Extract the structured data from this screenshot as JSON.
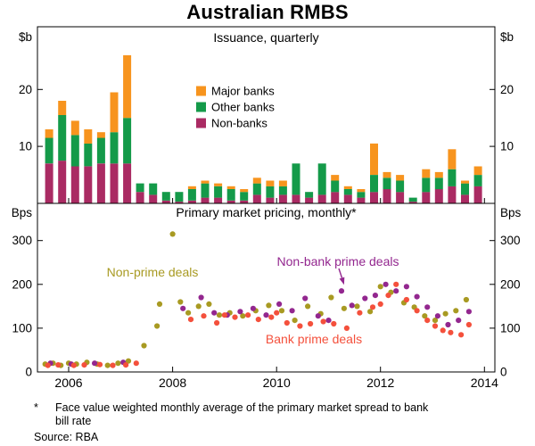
{
  "title": "Australian RMBS",
  "footnote": {
    "marker": "*",
    "text": "Face value weighted monthly average of the primary market spread to bank bill rate"
  },
  "source": "Source: RBA",
  "x_axis": {
    "min": 2005.4,
    "max": 2014.2,
    "ticks": [
      2006,
      2008,
      2010,
      2012,
      2014
    ]
  },
  "chart_data": [
    {
      "type": "bar",
      "panel": "top",
      "title": "Issuance, quarterly",
      "unit": "$b",
      "ylim": [
        0,
        31
      ],
      "yticks": [
        10,
        20
      ],
      "legend_order": [
        "Major banks",
        "Other banks",
        "Non-banks"
      ],
      "x": [
        2005.5,
        2005.75,
        2006,
        2006.25,
        2006.5,
        2006.75,
        2007,
        2007.25,
        2007.5,
        2007.75,
        2008,
        2008.25,
        2008.5,
        2008.75,
        2009,
        2009.25,
        2009.5,
        2009.75,
        2010,
        2010.25,
        2010.5,
        2010.75,
        2011,
        2011.25,
        2011.5,
        2011.75,
        2012,
        2012.25,
        2012.5,
        2012.75,
        2013,
        2013.25,
        2013.5,
        2013.75
      ],
      "series": [
        {
          "name": "Non-banks",
          "color": "#aa2b63",
          "values": [
            7,
            7.5,
            6.5,
            6.5,
            7,
            7,
            7,
            2,
            1.5,
            0.5,
            0.3,
            0.5,
            1,
            1,
            0.5,
            0.5,
            1.5,
            1,
            1.5,
            1.5,
            1,
            1.5,
            2,
            1.5,
            1,
            2,
            2.5,
            2,
            0.3,
            2,
            2.5,
            3,
            1.5,
            3
          ]
        },
        {
          "name": "Other banks",
          "color": "#149a49",
          "values": [
            4.5,
            8,
            5.5,
            4,
            4.5,
            5.5,
            8,
            1.5,
            2,
            1.5,
            1.7,
            2,
            2.5,
            2,
            2,
            1.5,
            2,
            2,
            1.5,
            5.5,
            1,
            5.5,
            2,
            1,
            1,
            3,
            2,
            2,
            0.7,
            2.5,
            2,
            3,
            2,
            2
          ]
        },
        {
          "name": "Major banks",
          "color": "#f7941e",
          "values": [
            1.5,
            2.5,
            2.5,
            2.5,
            1,
            7,
            11,
            0,
            0,
            0,
            0,
            0.5,
            0.5,
            0.5,
            0.5,
            0.5,
            1,
            1,
            1,
            0,
            0,
            0,
            1,
            0.5,
            0.5,
            5.5,
            1,
            1,
            0,
            1.5,
            1,
            3.5,
            0.5,
            1.5
          ]
        }
      ]
    },
    {
      "type": "scatter",
      "panel": "bottom",
      "title": "Primary market pricing, monthly*",
      "unit": "Bps",
      "ylim": [
        0,
        385
      ],
      "yticks": [
        0,
        100,
        200,
        300
      ],
      "series": [
        {
          "name": "Non-prime deals",
          "color": "#a89a22",
          "points": [
            [
              2005.55,
              18
            ],
            [
              2005.7,
              20
            ],
            [
              2005.85,
              15
            ],
            [
              2006.0,
              20
            ],
            [
              2006.15,
              18
            ],
            [
              2006.35,
              22
            ],
            [
              2006.55,
              18
            ],
            [
              2006.75,
              15
            ],
            [
              2006.95,
              20
            ],
            [
              2007.15,
              25
            ],
            [
              2007.45,
              60
            ],
            [
              2007.7,
              105
            ],
            [
              2007.75,
              155
            ],
            [
              2008.0,
              315
            ],
            [
              2008.15,
              160
            ],
            [
              2008.3,
              135
            ],
            [
              2008.5,
              150
            ],
            [
              2008.7,
              155
            ],
            [
              2008.9,
              130
            ],
            [
              2009.1,
              135
            ],
            [
              2009.35,
              128
            ],
            [
              2009.6,
              140
            ],
            [
              2009.85,
              152
            ],
            [
              2010.1,
              140
            ],
            [
              2010.35,
              118
            ],
            [
              2010.6,
              150
            ],
            [
              2010.85,
              133
            ],
            [
              2011.05,
              170
            ],
            [
              2011.3,
              145
            ],
            [
              2011.55,
              150
            ],
            [
              2011.8,
              138
            ],
            [
              2012.0,
              195
            ],
            [
              2012.2,
              182
            ],
            [
              2012.45,
              158
            ],
            [
              2012.65,
              148
            ],
            [
              2012.85,
              128
            ],
            [
              2013.05,
              118
            ],
            [
              2013.25,
              133
            ],
            [
              2013.45,
              140
            ],
            [
              2013.65,
              165
            ]
          ]
        },
        {
          "name": "Non-bank prime deals",
          "color": "#93278f",
          "points": [
            [
              2005.65,
              20
            ],
            [
              2006.05,
              18
            ],
            [
              2006.5,
              20
            ],
            [
              2007.05,
              22
            ],
            [
              2008.2,
              145
            ],
            [
              2008.55,
              170
            ],
            [
              2008.8,
              135
            ],
            [
              2009.05,
              130
            ],
            [
              2009.3,
              138
            ],
            [
              2009.55,
              145
            ],
            [
              2009.8,
              130
            ],
            [
              2010.05,
              155
            ],
            [
              2010.3,
              140
            ],
            [
              2010.55,
              168
            ],
            [
              2010.8,
              128
            ],
            [
              2011.0,
              118
            ],
            [
              2011.25,
              185
            ],
            [
              2011.45,
              152
            ],
            [
              2011.7,
              168
            ],
            [
              2011.9,
              175
            ],
            [
              2012.1,
              200
            ],
            [
              2012.3,
              185
            ],
            [
              2012.5,
              195
            ],
            [
              2012.7,
              172
            ],
            [
              2012.9,
              148
            ],
            [
              2013.1,
              128
            ],
            [
              2013.3,
              108
            ],
            [
              2013.5,
              118
            ],
            [
              2013.7,
              138
            ]
          ]
        },
        {
          "name": "Bank prime deals",
          "color": "#f4503c",
          "points": [
            [
              2005.6,
              15
            ],
            [
              2005.8,
              16
            ],
            [
              2006.1,
              15
            ],
            [
              2006.3,
              16
            ],
            [
              2006.6,
              17
            ],
            [
              2006.85,
              15
            ],
            [
              2007.1,
              16
            ],
            [
              2007.3,
              20
            ],
            [
              2008.35,
              120
            ],
            [
              2008.6,
              128
            ],
            [
              2008.85,
              112
            ],
            [
              2009.0,
              130
            ],
            [
              2009.2,
              125
            ],
            [
              2009.45,
              130
            ],
            [
              2009.65,
              120
            ],
            [
              2009.9,
              125
            ],
            [
              2010.0,
              135
            ],
            [
              2010.2,
              112
            ],
            [
              2010.45,
              105
            ],
            [
              2010.65,
              110
            ],
            [
              2010.9,
              115
            ],
            [
              2011.1,
              110
            ],
            [
              2011.35,
              100
            ],
            [
              2011.6,
              135
            ],
            [
              2011.85,
              148
            ],
            [
              2012.0,
              155
            ],
            [
              2012.15,
              175
            ],
            [
              2012.3,
              200
            ],
            [
              2012.5,
              165
            ],
            [
              2012.7,
              140
            ],
            [
              2012.9,
              118
            ],
            [
              2013.05,
              105
            ],
            [
              2013.2,
              95
            ],
            [
              2013.35,
              90
            ],
            [
              2013.55,
              85
            ],
            [
              2013.7,
              108
            ]
          ]
        }
      ],
      "annotation": {
        "text_series": "Non-bank prime deals",
        "arrow_to": [
          2011.3,
          185
        ]
      }
    }
  ]
}
